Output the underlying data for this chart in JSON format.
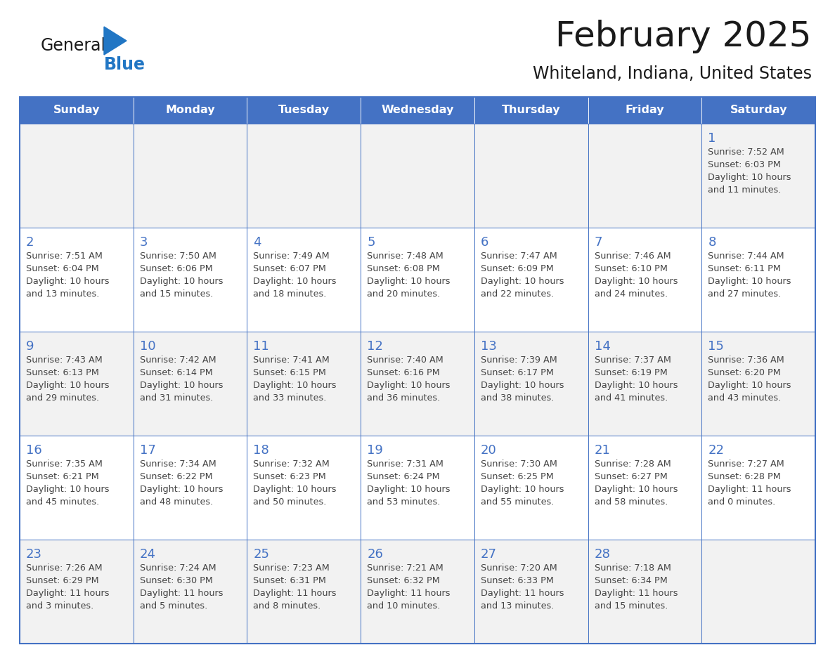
{
  "title": "February 2025",
  "subtitle": "Whiteland, Indiana, United States",
  "days_of_week": [
    "Sunday",
    "Monday",
    "Tuesday",
    "Wednesday",
    "Thursday",
    "Friday",
    "Saturday"
  ],
  "header_bg": "#4472C4",
  "header_text": "#FFFFFF",
  "cell_bg_odd": "#F2F2F2",
  "cell_bg_even": "#FFFFFF",
  "border_color": "#4472C4",
  "day_number_color": "#4472C4",
  "text_color": "#444444",
  "title_color": "#1a1a1a",
  "logo_general_color": "#1a1a1a",
  "logo_blue_color": "#2176C4",
  "logo_triangle_color": "#2176C4",
  "calendar_data": [
    [
      null,
      null,
      null,
      null,
      null,
      null,
      {
        "day": 1,
        "sunrise": "7:52 AM",
        "sunset": "6:03 PM",
        "daylight": "10 hours",
        "daylight2": "and 11 minutes."
      }
    ],
    [
      {
        "day": 2,
        "sunrise": "7:51 AM",
        "sunset": "6:04 PM",
        "daylight": "10 hours",
        "daylight2": "and 13 minutes."
      },
      {
        "day": 3,
        "sunrise": "7:50 AM",
        "sunset": "6:06 PM",
        "daylight": "10 hours",
        "daylight2": "and 15 minutes."
      },
      {
        "day": 4,
        "sunrise": "7:49 AM",
        "sunset": "6:07 PM",
        "daylight": "10 hours",
        "daylight2": "and 18 minutes."
      },
      {
        "day": 5,
        "sunrise": "7:48 AM",
        "sunset": "6:08 PM",
        "daylight": "10 hours",
        "daylight2": "and 20 minutes."
      },
      {
        "day": 6,
        "sunrise": "7:47 AM",
        "sunset": "6:09 PM",
        "daylight": "10 hours",
        "daylight2": "and 22 minutes."
      },
      {
        "day": 7,
        "sunrise": "7:46 AM",
        "sunset": "6:10 PM",
        "daylight": "10 hours",
        "daylight2": "and 24 minutes."
      },
      {
        "day": 8,
        "sunrise": "7:44 AM",
        "sunset": "6:11 PM",
        "daylight": "10 hours",
        "daylight2": "and 27 minutes."
      }
    ],
    [
      {
        "day": 9,
        "sunrise": "7:43 AM",
        "sunset": "6:13 PM",
        "daylight": "10 hours",
        "daylight2": "and 29 minutes."
      },
      {
        "day": 10,
        "sunrise": "7:42 AM",
        "sunset": "6:14 PM",
        "daylight": "10 hours",
        "daylight2": "and 31 minutes."
      },
      {
        "day": 11,
        "sunrise": "7:41 AM",
        "sunset": "6:15 PM",
        "daylight": "10 hours",
        "daylight2": "and 33 minutes."
      },
      {
        "day": 12,
        "sunrise": "7:40 AM",
        "sunset": "6:16 PM",
        "daylight": "10 hours",
        "daylight2": "and 36 minutes."
      },
      {
        "day": 13,
        "sunrise": "7:39 AM",
        "sunset": "6:17 PM",
        "daylight": "10 hours",
        "daylight2": "and 38 minutes."
      },
      {
        "day": 14,
        "sunrise": "7:37 AM",
        "sunset": "6:19 PM",
        "daylight": "10 hours",
        "daylight2": "and 41 minutes."
      },
      {
        "day": 15,
        "sunrise": "7:36 AM",
        "sunset": "6:20 PM",
        "daylight": "10 hours",
        "daylight2": "and 43 minutes."
      }
    ],
    [
      {
        "day": 16,
        "sunrise": "7:35 AM",
        "sunset": "6:21 PM",
        "daylight": "10 hours",
        "daylight2": "and 45 minutes."
      },
      {
        "day": 17,
        "sunrise": "7:34 AM",
        "sunset": "6:22 PM",
        "daylight": "10 hours",
        "daylight2": "and 48 minutes."
      },
      {
        "day": 18,
        "sunrise": "7:32 AM",
        "sunset": "6:23 PM",
        "daylight": "10 hours",
        "daylight2": "and 50 minutes."
      },
      {
        "day": 19,
        "sunrise": "7:31 AM",
        "sunset": "6:24 PM",
        "daylight": "10 hours",
        "daylight2": "and 53 minutes."
      },
      {
        "day": 20,
        "sunrise": "7:30 AM",
        "sunset": "6:25 PM",
        "daylight": "10 hours",
        "daylight2": "and 55 minutes."
      },
      {
        "day": 21,
        "sunrise": "7:28 AM",
        "sunset": "6:27 PM",
        "daylight": "10 hours",
        "daylight2": "and 58 minutes."
      },
      {
        "day": 22,
        "sunrise": "7:27 AM",
        "sunset": "6:28 PM",
        "daylight": "11 hours",
        "daylight2": "and 0 minutes."
      }
    ],
    [
      {
        "day": 23,
        "sunrise": "7:26 AM",
        "sunset": "6:29 PM",
        "daylight": "11 hours",
        "daylight2": "and 3 minutes."
      },
      {
        "day": 24,
        "sunrise": "7:24 AM",
        "sunset": "6:30 PM",
        "daylight": "11 hours",
        "daylight2": "and 5 minutes."
      },
      {
        "day": 25,
        "sunrise": "7:23 AM",
        "sunset": "6:31 PM",
        "daylight": "11 hours",
        "daylight2": "and 8 minutes."
      },
      {
        "day": 26,
        "sunrise": "7:21 AM",
        "sunset": "6:32 PM",
        "daylight": "11 hours",
        "daylight2": "and 10 minutes."
      },
      {
        "day": 27,
        "sunrise": "7:20 AM",
        "sunset": "6:33 PM",
        "daylight": "11 hours",
        "daylight2": "and 13 minutes."
      },
      {
        "day": 28,
        "sunrise": "7:18 AM",
        "sunset": "6:34 PM",
        "daylight": "11 hours",
        "daylight2": "and 15 minutes."
      },
      null
    ]
  ]
}
